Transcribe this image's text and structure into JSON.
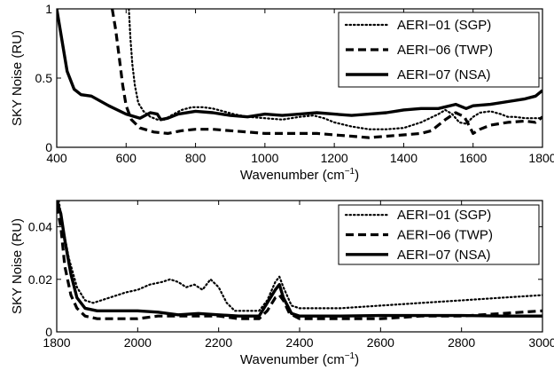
{
  "chart_data": [
    {
      "type": "line",
      "xlabel": "Wavenumber (cm",
      "xlabel_sup": "−1",
      "xlabel_suffix": ")",
      "ylabel": "SKY Noise (RU)",
      "xlim": [
        400,
        1800
      ],
      "ylim": [
        0,
        1
      ],
      "xticks": [
        400,
        600,
        800,
        1000,
        1200,
        1400,
        1600,
        1800
      ],
      "yticks": [
        0,
        0.5,
        1
      ],
      "xtick_labels": [
        "400",
        "600",
        "800",
        "1000",
        "1200",
        "1400",
        "1600",
        "1800"
      ],
      "ytick_labels": [
        "0",
        "0.5",
        "1"
      ],
      "legend_position": "top-right",
      "series": [
        {
          "name": "AERI−01 (SGP)",
          "style": "dotted",
          "points": [
            [
              608,
              1.0
            ],
            [
              612,
              0.8
            ],
            [
              618,
              0.6
            ],
            [
              625,
              0.45
            ],
            [
              635,
              0.32
            ],
            [
              650,
              0.26
            ],
            [
              670,
              0.22
            ],
            [
              690,
              0.2
            ],
            [
              710,
              0.2
            ],
            [
              730,
              0.23
            ],
            [
              760,
              0.27
            ],
            [
              790,
              0.29
            ],
            [
              820,
              0.29
            ],
            [
              850,
              0.28
            ],
            [
              880,
              0.26
            ],
            [
              910,
              0.24
            ],
            [
              950,
              0.22
            ],
            [
              1000,
              0.21
            ],
            [
              1050,
              0.2
            ],
            [
              1100,
              0.22
            ],
            [
              1140,
              0.23
            ],
            [
              1170,
              0.21
            ],
            [
              1200,
              0.18
            ],
            [
              1250,
              0.15
            ],
            [
              1300,
              0.13
            ],
            [
              1350,
              0.13
            ],
            [
              1400,
              0.14
            ],
            [
              1450,
              0.18
            ],
            [
              1500,
              0.24
            ],
            [
              1520,
              0.27
            ],
            [
              1540,
              0.24
            ],
            [
              1560,
              0.18
            ],
            [
              1580,
              0.17
            ],
            [
              1600,
              0.22
            ],
            [
              1620,
              0.25
            ],
            [
              1650,
              0.26
            ],
            [
              1680,
              0.24
            ],
            [
              1700,
              0.22
            ],
            [
              1720,
              0.22
            ],
            [
              1750,
              0.21
            ],
            [
              1780,
              0.21
            ],
            [
              1800,
              0.21
            ]
          ]
        },
        {
          "name": "AERI−06 (TWP)",
          "style": "dashed",
          "points": [
            [
              560,
              1.0
            ],
            [
              570,
              0.85
            ],
            [
              580,
              0.65
            ],
            [
              590,
              0.45
            ],
            [
              600,
              0.3
            ],
            [
              615,
              0.2
            ],
            [
              640,
              0.14
            ],
            [
              680,
              0.11
            ],
            [
              720,
              0.1
            ],
            [
              760,
              0.12
            ],
            [
              800,
              0.13
            ],
            [
              850,
              0.13
            ],
            [
              900,
              0.12
            ],
            [
              950,
              0.11
            ],
            [
              1000,
              0.1
            ],
            [
              1050,
              0.1
            ],
            [
              1100,
              0.1
            ],
            [
              1150,
              0.1
            ],
            [
              1200,
              0.09
            ],
            [
              1250,
              0.08
            ],
            [
              1300,
              0.07
            ],
            [
              1350,
              0.08
            ],
            [
              1400,
              0.09
            ],
            [
              1450,
              0.1
            ],
            [
              1480,
              0.12
            ],
            [
              1500,
              0.16
            ],
            [
              1520,
              0.2
            ],
            [
              1550,
              0.25
            ],
            [
              1575,
              0.22
            ],
            [
              1590,
              0.15
            ],
            [
              1600,
              0.1
            ],
            [
              1620,
              0.13
            ],
            [
              1650,
              0.16
            ],
            [
              1700,
              0.18
            ],
            [
              1750,
              0.19
            ],
            [
              1780,
              0.18
            ],
            [
              1800,
              0.22
            ]
          ]
        },
        {
          "name": "AERI−07 (NSA)",
          "style": "solid",
          "points": [
            [
              400,
              1.0
            ],
            [
              410,
              0.85
            ],
            [
              420,
              0.7
            ],
            [
              430,
              0.55
            ],
            [
              450,
              0.42
            ],
            [
              470,
              0.38
            ],
            [
              500,
              0.37
            ],
            [
              550,
              0.3
            ],
            [
              600,
              0.24
            ],
            [
              640,
              0.21
            ],
            [
              670,
              0.25
            ],
            [
              690,
              0.24
            ],
            [
              700,
              0.2
            ],
            [
              720,
              0.21
            ],
            [
              750,
              0.24
            ],
            [
              800,
              0.26
            ],
            [
              850,
              0.25
            ],
            [
              900,
              0.23
            ],
            [
              950,
              0.22
            ],
            [
              1000,
              0.24
            ],
            [
              1050,
              0.23
            ],
            [
              1100,
              0.24
            ],
            [
              1150,
              0.25
            ],
            [
              1200,
              0.24
            ],
            [
              1250,
              0.23
            ],
            [
              1300,
              0.24
            ],
            [
              1350,
              0.25
            ],
            [
              1400,
              0.27
            ],
            [
              1450,
              0.28
            ],
            [
              1500,
              0.28
            ],
            [
              1550,
              0.31
            ],
            [
              1580,
              0.28
            ],
            [
              1600,
              0.3
            ],
            [
              1650,
              0.31
            ],
            [
              1700,
              0.33
            ],
            [
              1750,
              0.35
            ],
            [
              1780,
              0.37
            ],
            [
              1800,
              0.41
            ]
          ]
        }
      ]
    },
    {
      "type": "line",
      "xlabel": "Wavenumber (cm",
      "xlabel_sup": "−1",
      "xlabel_suffix": ")",
      "ylabel": "SKY Noise (RU)",
      "xlim": [
        1800,
        3000
      ],
      "ylim": [
        0,
        0.05
      ],
      "xticks": [
        1800,
        2000,
        2200,
        2400,
        2600,
        2800,
        3000
      ],
      "yticks": [
        0,
        0.02,
        0.04
      ],
      "xtick_labels": [
        "1800",
        "2000",
        "2200",
        "2400",
        "2600",
        "2800",
        "3000"
      ],
      "ytick_labels": [
        "0",
        "0.02",
        "0.04"
      ],
      "legend_position": "top-right",
      "series": [
        {
          "name": "AERI−01 (SGP)",
          "style": "dotted",
          "points": [
            [
              1805,
              0.05
            ],
            [
              1815,
              0.04
            ],
            [
              1830,
              0.028
            ],
            [
              1850,
              0.017
            ],
            [
              1870,
              0.012
            ],
            [
              1890,
              0.011
            ],
            [
              1910,
              0.012
            ],
            [
              1930,
              0.013
            ],
            [
              1950,
              0.014
            ],
            [
              1970,
              0.015
            ],
            [
              2000,
              0.016
            ],
            [
              2030,
              0.018
            ],
            [
              2060,
              0.019
            ],
            [
              2080,
              0.02
            ],
            [
              2100,
              0.019
            ],
            [
              2120,
              0.017
            ],
            [
              2140,
              0.018
            ],
            [
              2160,
              0.016
            ],
            [
              2180,
              0.02
            ],
            [
              2200,
              0.017
            ],
            [
              2220,
              0.011
            ],
            [
              2240,
              0.008
            ],
            [
              2270,
              0.008
            ],
            [
              2300,
              0.008
            ],
            [
              2320,
              0.012
            ],
            [
              2340,
              0.019
            ],
            [
              2350,
              0.021
            ],
            [
              2360,
              0.017
            ],
            [
              2380,
              0.01
            ],
            [
              2400,
              0.009
            ],
            [
              2450,
              0.009
            ],
            [
              2500,
              0.009
            ],
            [
              2600,
              0.01
            ],
            [
              2700,
              0.011
            ],
            [
              2800,
              0.012
            ],
            [
              2900,
              0.013
            ],
            [
              3000,
              0.014
            ]
          ]
        },
        {
          "name": "AERI−06 (TWP)",
          "style": "dashed",
          "points": [
            [
              1800,
              0.048
            ],
            [
              1810,
              0.04
            ],
            [
              1820,
              0.025
            ],
            [
              1835,
              0.014
            ],
            [
              1850,
              0.009
            ],
            [
              1870,
              0.006
            ],
            [
              1900,
              0.005
            ],
            [
              1950,
              0.005
            ],
            [
              2000,
              0.005
            ],
            [
              2050,
              0.006
            ],
            [
              2100,
              0.006
            ],
            [
              2150,
              0.006
            ],
            [
              2200,
              0.006
            ],
            [
              2250,
              0.005
            ],
            [
              2300,
              0.005
            ],
            [
              2320,
              0.008
            ],
            [
              2340,
              0.013
            ],
            [
              2350,
              0.014
            ],
            [
              2360,
              0.012
            ],
            [
              2375,
              0.007
            ],
            [
              2400,
              0.005
            ],
            [
              2500,
              0.005
            ],
            [
              2600,
              0.005
            ],
            [
              2700,
              0.006
            ],
            [
              2800,
              0.006
            ],
            [
              2900,
              0.007
            ],
            [
              3000,
              0.008
            ]
          ]
        },
        {
          "name": "AERI−07 (NSA)",
          "style": "solid",
          "points": [
            [
              1800,
              0.05
            ],
            [
              1810,
              0.045
            ],
            [
              1820,
              0.035
            ],
            [
              1835,
              0.022
            ],
            [
              1850,
              0.013
            ],
            [
              1870,
              0.009
            ],
            [
              1900,
              0.008
            ],
            [
              1950,
              0.008
            ],
            [
              2000,
              0.008
            ],
            [
              2050,
              0.0075
            ],
            [
              2100,
              0.0065
            ],
            [
              2150,
              0.007
            ],
            [
              2200,
              0.0065
            ],
            [
              2250,
              0.006
            ],
            [
              2300,
              0.006
            ],
            [
              2320,
              0.011
            ],
            [
              2340,
              0.016
            ],
            [
              2350,
              0.018
            ],
            [
              2360,
              0.013
            ],
            [
              2380,
              0.007
            ],
            [
              2400,
              0.006
            ],
            [
              2500,
              0.006
            ],
            [
              2600,
              0.0062
            ],
            [
              2700,
              0.0062
            ],
            [
              2800,
              0.0062
            ],
            [
              2900,
              0.006
            ],
            [
              3000,
              0.006
            ]
          ]
        }
      ]
    }
  ]
}
